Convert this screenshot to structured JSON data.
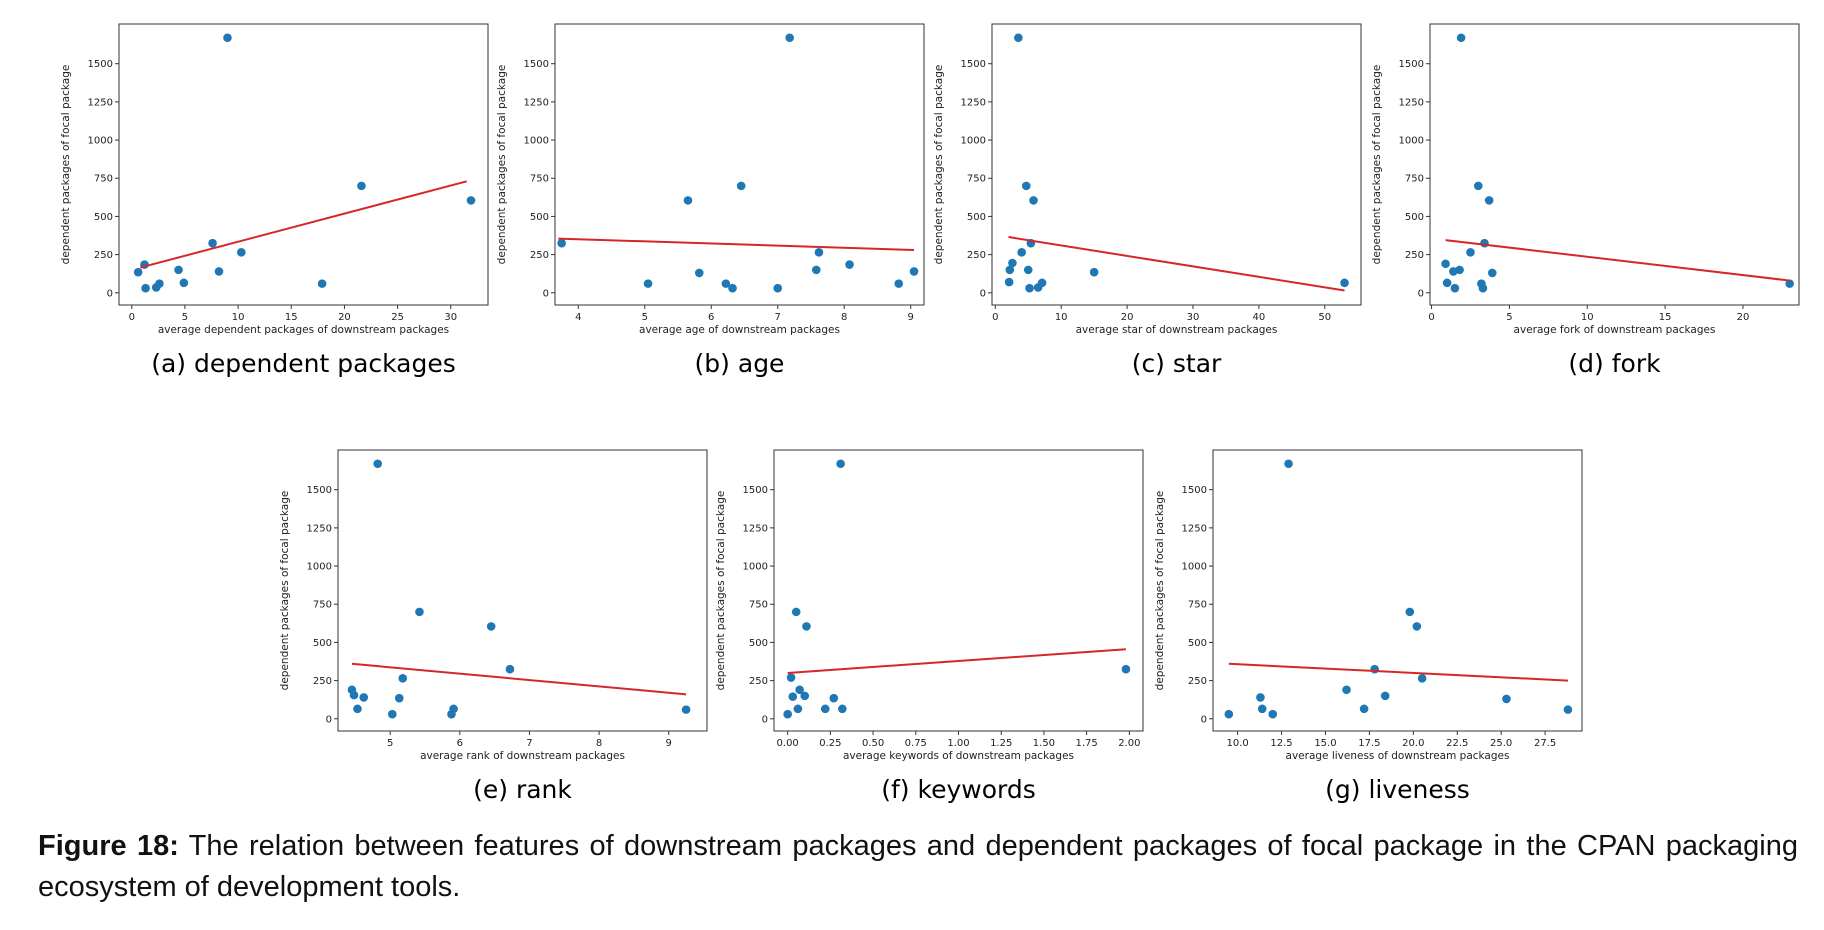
{
  "figure": {
    "caption_label": "Figure 18:",
    "caption_text": " The relation between features of downstream packages and dependent packages of focal package in the CPAN packaging ecosystem of development tools."
  },
  "colors": {
    "points": "#1f77b4",
    "fit": "#d62728"
  },
  "chart_data": [
    {
      "id": "a",
      "type": "scatter",
      "subcaption": "(a)  dependent packages",
      "xlabel": "average dependent packages of downstream packages",
      "ylabel": "dependent packages of focal package",
      "xlim": [
        -1.2,
        33.5
      ],
      "ylim": [
        -80,
        1760
      ],
      "xticks": [
        0,
        5,
        10,
        15,
        20,
        25,
        30
      ],
      "xtick_labels": [
        "0",
        "5",
        "10",
        "15",
        "20",
        "25",
        "30"
      ],
      "yticks": [
        0,
        250,
        500,
        750,
        1000,
        1250,
        1500
      ],
      "ytick_labels": [
        "0",
        "250",
        "500",
        "750",
        "1000",
        "1250",
        "1500"
      ],
      "points": [
        [
          0.6,
          135
        ],
        [
          1.2,
          185
        ],
        [
          1.3,
          30
        ],
        [
          2.3,
          35
        ],
        [
          2.6,
          60
        ],
        [
          4.4,
          150
        ],
        [
          4.9,
          65
        ],
        [
          7.6,
          325
        ],
        [
          8.2,
          140
        ],
        [
          9.0,
          1670
        ],
        [
          10.3,
          265
        ],
        [
          17.9,
          60
        ],
        [
          21.6,
          700
        ],
        [
          31.9,
          605
        ]
      ],
      "fit": [
        [
          0.8,
          165
        ],
        [
          31.5,
          730
        ]
      ]
    },
    {
      "id": "b",
      "type": "scatter",
      "subcaption": "(b)  age",
      "xlabel": "average age of downstream packages",
      "ylabel": "dependent packages of focal package",
      "xlim": [
        3.65,
        9.2
      ],
      "ylim": [
        -80,
        1760
      ],
      "xticks": [
        4,
        5,
        6,
        7,
        8,
        9
      ],
      "xtick_labels": [
        "4",
        "5",
        "6",
        "7",
        "8",
        "9"
      ],
      "yticks": [
        0,
        250,
        500,
        750,
        1000,
        1250,
        1500
      ],
      "ytick_labels": [
        "0",
        "250",
        "500",
        "750",
        "1000",
        "1250",
        "1500"
      ],
      "points": [
        [
          3.75,
          325
        ],
        [
          5.05,
          60
        ],
        [
          5.65,
          605
        ],
        [
          5.82,
          130
        ],
        [
          6.22,
          60
        ],
        [
          6.32,
          30
        ],
        [
          6.45,
          700
        ],
        [
          7.0,
          30
        ],
        [
          7.18,
          1670
        ],
        [
          7.58,
          150
        ],
        [
          7.62,
          265
        ],
        [
          8.08,
          185
        ],
        [
          8.82,
          60
        ],
        [
          9.05,
          140
        ]
      ],
      "fit": [
        [
          3.7,
          355
        ],
        [
          9.05,
          280
        ]
      ]
    },
    {
      "id": "c",
      "type": "scatter",
      "subcaption": "(c)  star",
      "xlabel": "average star of downstream packages",
      "ylabel": "dependent packages of focal package",
      "xlim": [
        -0.5,
        55.5
      ],
      "ylim": [
        -80,
        1760
      ],
      "xticks": [
        0,
        10,
        20,
        30,
        40,
        50
      ],
      "xtick_labels": [
        "0",
        "10",
        "20",
        "30",
        "40",
        "50"
      ],
      "yticks": [
        0,
        250,
        500,
        750,
        1000,
        1250,
        1500
      ],
      "ytick_labels": [
        "0",
        "250",
        "500",
        "750",
        "1000",
        "1250",
        "1500"
      ],
      "points": [
        [
          2.1,
          70
        ],
        [
          2.2,
          150
        ],
        [
          2.6,
          195
        ],
        [
          3.5,
          1670
        ],
        [
          4.0,
          265
        ],
        [
          4.7,
          700
        ],
        [
          5.0,
          150
        ],
        [
          5.2,
          30
        ],
        [
          5.4,
          325
        ],
        [
          5.8,
          605
        ],
        [
          6.5,
          35
        ],
        [
          7.1,
          65
        ],
        [
          15.0,
          135
        ],
        [
          53.0,
          65
        ]
      ],
      "fit": [
        [
          2.0,
          365
        ],
        [
          53.0,
          15
        ]
      ]
    },
    {
      "id": "d",
      "type": "scatter",
      "subcaption": "(d)  fork",
      "xlabel": "average fork of downstream packages",
      "ylabel": "dependent packages of focal package",
      "xlim": [
        -0.1,
        23.6
      ],
      "ylim": [
        -80,
        1760
      ],
      "xticks": [
        0,
        5,
        10,
        15,
        20
      ],
      "xtick_labels": [
        "0",
        "5",
        "10",
        "15",
        "20"
      ],
      "yticks": [
        0,
        250,
        500,
        750,
        1000,
        1250,
        1500
      ],
      "ytick_labels": [
        "0",
        "250",
        "500",
        "750",
        "1000",
        "1250",
        "1500"
      ],
      "points": [
        [
          0.9,
          190
        ],
        [
          1.0,
          65
        ],
        [
          1.4,
          140
        ],
        [
          1.5,
          30
        ],
        [
          1.8,
          150
        ],
        [
          1.9,
          1670
        ],
        [
          2.5,
          265
        ],
        [
          3.0,
          700
        ],
        [
          3.2,
          60
        ],
        [
          3.3,
          30
        ],
        [
          3.4,
          325
        ],
        [
          3.7,
          605
        ],
        [
          3.9,
          130
        ],
        [
          23.0,
          60
        ]
      ],
      "fit": [
        [
          0.9,
          345
        ],
        [
          23.0,
          80
        ]
      ]
    },
    {
      "id": "e",
      "type": "scatter",
      "subcaption": "(e)  rank",
      "xlabel": "average rank of downstream packages",
      "ylabel": "dependent packages of focal package",
      "xlim": [
        4.25,
        9.55
      ],
      "ylim": [
        -80,
        1760
      ],
      "xticks": [
        5,
        6,
        7,
        8,
        9
      ],
      "xtick_labels": [
        "5",
        "6",
        "7",
        "8",
        "9"
      ],
      "yticks": [
        0,
        250,
        500,
        750,
        1000,
        1250,
        1500
      ],
      "ytick_labels": [
        "0",
        "250",
        "500",
        "750",
        "1000",
        "1250",
        "1500"
      ],
      "points": [
        [
          4.45,
          190
        ],
        [
          4.48,
          155
        ],
        [
          4.53,
          65
        ],
        [
          4.62,
          140
        ],
        [
          4.82,
          1670
        ],
        [
          5.03,
          30
        ],
        [
          5.13,
          135
        ],
        [
          5.18,
          265
        ],
        [
          5.42,
          700
        ],
        [
          5.88,
          30
        ],
        [
          5.91,
          65
        ],
        [
          6.45,
          605
        ],
        [
          6.72,
          325
        ],
        [
          9.25,
          60
        ]
      ],
      "fit": [
        [
          4.45,
          360
        ],
        [
          9.25,
          160
        ]
      ]
    },
    {
      "id": "f",
      "type": "scatter",
      "subcaption": "(f)  keywords",
      "xlabel": "average keywords of downstream packages",
      "ylabel": "dependent packages of focal package",
      "xlim": [
        -0.08,
        2.08
      ],
      "ylim": [
        -80,
        1760
      ],
      "xticks": [
        0.0,
        0.25,
        0.5,
        0.75,
        1.0,
        1.25,
        1.5,
        1.75,
        2.0
      ],
      "xtick_labels": [
        "0.00",
        "0.25",
        "0.50",
        "0.75",
        "1.00",
        "1.25",
        "1.50",
        "1.75",
        "2.00"
      ],
      "yticks": [
        0,
        250,
        500,
        750,
        1000,
        1250,
        1500
      ],
      "ytick_labels": [
        "0",
        "250",
        "500",
        "750",
        "1000",
        "1250",
        "1500"
      ],
      "points": [
        [
          0.0,
          30
        ],
        [
          0.02,
          270
        ],
        [
          0.03,
          145
        ],
        [
          0.05,
          700
        ],
        [
          0.06,
          65
        ],
        [
          0.07,
          190
        ],
        [
          0.1,
          150
        ],
        [
          0.11,
          605
        ],
        [
          0.22,
          65
        ],
        [
          0.27,
          135
        ],
        [
          0.31,
          1670
        ],
        [
          0.32,
          65
        ],
        [
          1.98,
          325
        ]
      ],
      "fit": [
        [
          0.0,
          300
        ],
        [
          1.98,
          455
        ]
      ]
    },
    {
      "id": "g",
      "type": "scatter",
      "subcaption": "(g)  liveness",
      "xlabel": "average liveness of downstream packages",
      "ylabel": "dependent packages of focal package",
      "xlim": [
        8.6,
        29.6
      ],
      "ylim": [
        -80,
        1760
      ],
      "xticks": [
        10.0,
        12.5,
        15.0,
        17.5,
        20.0,
        22.5,
        25.0,
        27.5
      ],
      "xtick_labels": [
        "10.0",
        "12.5",
        "15.0",
        "17.5",
        "20.0",
        "22.5",
        "25.0",
        "27.5"
      ],
      "yticks": [
        0,
        250,
        500,
        750,
        1000,
        1250,
        1500
      ],
      "ytick_labels": [
        "0",
        "250",
        "500",
        "750",
        "1000",
        "1250",
        "1500"
      ],
      "points": [
        [
          9.5,
          30
        ],
        [
          11.3,
          140
        ],
        [
          11.4,
          65
        ],
        [
          12.0,
          30
        ],
        [
          12.9,
          1670
        ],
        [
          16.2,
          190
        ],
        [
          17.2,
          65
        ],
        [
          17.8,
          325
        ],
        [
          18.4,
          150
        ],
        [
          19.8,
          700
        ],
        [
          20.2,
          605
        ],
        [
          20.5,
          265
        ],
        [
          25.3,
          130
        ],
        [
          28.8,
          60
        ]
      ],
      "fit": [
        [
          9.5,
          360
        ],
        [
          28.8,
          250
        ]
      ]
    }
  ]
}
